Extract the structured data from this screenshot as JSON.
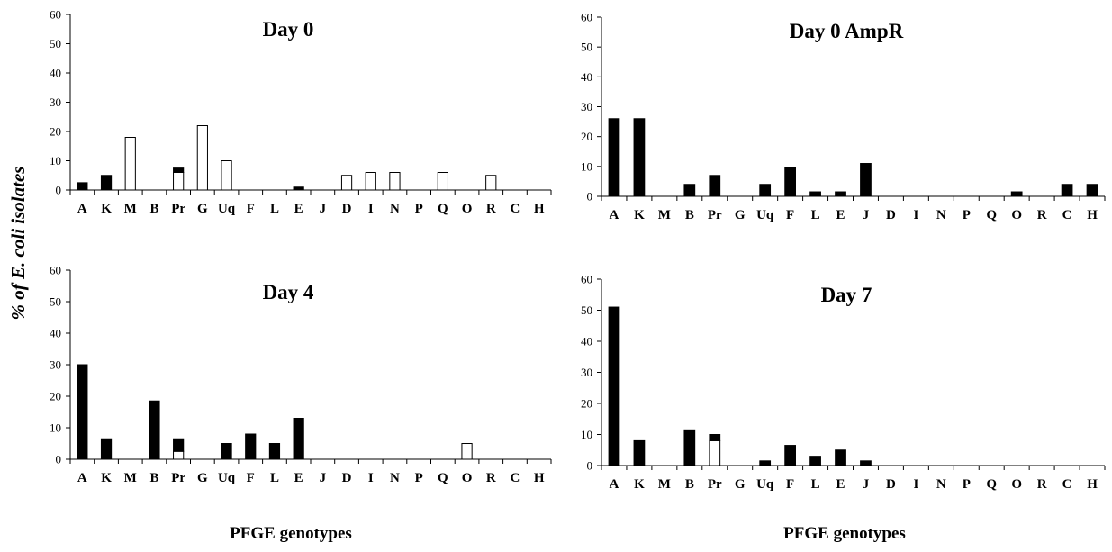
{
  "figure": {
    "ylabel_prefix": "% of ",
    "ylabel_species": "E. coli",
    "ylabel_suffix": " isolates",
    "xlabel_left": "PFGE genotypes",
    "xlabel_right": "PFGE genotypes"
  },
  "colors": {
    "solid": "#000000",
    "open": "#ffffff",
    "outline": "#000000"
  },
  "chart_data": [
    {
      "type": "bar",
      "stacked": true,
      "title": "Day 0",
      "ylim": [
        0,
        60
      ],
      "yticks": [
        0,
        10,
        20,
        30,
        40,
        50,
        60
      ],
      "categories": [
        "A",
        "K",
        "M",
        "B",
        "Pr",
        "G",
        "Uq",
        "F",
        "L",
        "E",
        "J",
        "D",
        "I",
        "N",
        "P",
        "Q",
        "O",
        "R",
        "C",
        "H"
      ],
      "series": [
        {
          "values": [
            0,
            0,
            18,
            0,
            6,
            22,
            10,
            0,
            0,
            0,
            0,
            5,
            6,
            6,
            0,
            6,
            0,
            5,
            0,
            0
          ]
        },
        {
          "values": [
            2.5,
            5,
            0,
            0,
            1.5,
            0,
            0,
            0,
            0,
            1,
            0,
            0,
            0,
            0,
            0,
            0,
            0,
            0,
            0,
            0
          ]
        }
      ]
    },
    {
      "type": "bar",
      "stacked": true,
      "title": "Day 0 AmpR",
      "ylim": [
        0,
        60
      ],
      "yticks": [
        0,
        10,
        20,
        30,
        40,
        50,
        60
      ],
      "categories": [
        "A",
        "K",
        "M",
        "B",
        "Pr",
        "G",
        "Uq",
        "F",
        "L",
        "E",
        "J",
        "D",
        "I",
        "N",
        "P",
        "Q",
        "O",
        "R",
        "C",
        "H"
      ],
      "series": [
        {
          "values": [
            0,
            0,
            0,
            0,
            0,
            0,
            0,
            0,
            0,
            0,
            0,
            0,
            0,
            0,
            0,
            0,
            0,
            0,
            0,
            0
          ]
        },
        {
          "values": [
            26,
            26,
            0,
            4,
            7,
            0,
            4,
            9.5,
            1.5,
            1.5,
            11,
            0,
            0,
            0,
            0,
            0,
            1.5,
            0,
            4,
            4
          ]
        }
      ]
    },
    {
      "type": "bar",
      "stacked": true,
      "title": "Day 4",
      "ylim": [
        0,
        60
      ],
      "yticks": [
        0,
        10,
        20,
        30,
        40,
        50,
        60
      ],
      "categories": [
        "A",
        "K",
        "M",
        "B",
        "Pr",
        "G",
        "Uq",
        "F",
        "L",
        "E",
        "J",
        "D",
        "I",
        "N",
        "P",
        "Q",
        "O",
        "R",
        "C",
        "H"
      ],
      "series": [
        {
          "values": [
            0,
            0,
            0,
            0,
            2.5,
            0,
            0,
            0,
            0,
            0,
            0,
            0,
            0,
            0,
            0,
            0,
            5,
            0,
            0,
            0
          ]
        },
        {
          "values": [
            30,
            6.5,
            0,
            18.5,
            4,
            0,
            5,
            8,
            5,
            13,
            0,
            0,
            0,
            0,
            0,
            0,
            0,
            0,
            0,
            0
          ]
        }
      ]
    },
    {
      "type": "bar",
      "stacked": true,
      "title": "Day 7",
      "ylim": [
        0,
        60
      ],
      "yticks": [
        0,
        10,
        20,
        30,
        40,
        50,
        60
      ],
      "categories": [
        "A",
        "K",
        "M",
        "B",
        "Pr",
        "G",
        "Uq",
        "F",
        "L",
        "E",
        "J",
        "D",
        "I",
        "N",
        "P",
        "Q",
        "O",
        "R",
        "C",
        "H"
      ],
      "series": [
        {
          "values": [
            0,
            0,
            0,
            0,
            8,
            0,
            0,
            0,
            0,
            0,
            0,
            0,
            0,
            0,
            0,
            0,
            0,
            0,
            0,
            0
          ]
        },
        {
          "values": [
            51,
            8,
            0,
            11.5,
            2,
            0,
            1.5,
            6.5,
            3,
            5,
            1.5,
            0,
            0,
            0,
            0,
            0,
            0,
            0,
            0,
            0
          ]
        }
      ]
    }
  ]
}
